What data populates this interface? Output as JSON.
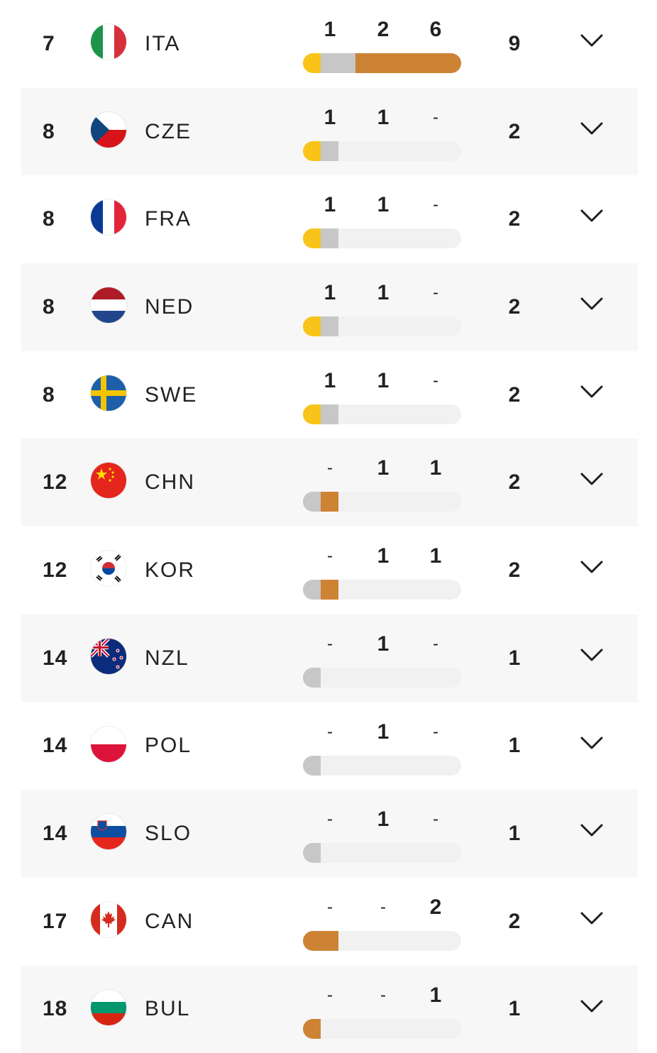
{
  "colors": {
    "gold": "#f9c41a",
    "silver": "#c7c7c7",
    "bronze": "#cd8334",
    "bar_track": "#f1f1f1",
    "row_alt": "#f7f7f7"
  },
  "medal_table": {
    "rows": [
      {
        "rank": "7",
        "code": "ITA",
        "flag_icon": "italy-flag-icon",
        "gold": "1",
        "silver": "2",
        "bronze": "6",
        "total": "9",
        "bar": {
          "gold": 1,
          "silver": 2,
          "bronze": 6
        },
        "expand_icon": "chevron-down-icon"
      },
      {
        "rank": "8",
        "code": "CZE",
        "flag_icon": "czechia-flag-icon",
        "gold": "1",
        "silver": "1",
        "bronze": "-",
        "total": "2",
        "bar": {
          "gold": 1,
          "silver": 1,
          "bronze": 0
        },
        "expand_icon": "chevron-down-icon"
      },
      {
        "rank": "8",
        "code": "FRA",
        "flag_icon": "france-flag-icon",
        "gold": "1",
        "silver": "1",
        "bronze": "-",
        "total": "2",
        "bar": {
          "gold": 1,
          "silver": 1,
          "bronze": 0
        },
        "expand_icon": "chevron-down-icon"
      },
      {
        "rank": "8",
        "code": "NED",
        "flag_icon": "netherlands-flag-icon",
        "gold": "1",
        "silver": "1",
        "bronze": "-",
        "total": "2",
        "bar": {
          "gold": 1,
          "silver": 1,
          "bronze": 0
        },
        "expand_icon": "chevron-down-icon"
      },
      {
        "rank": "8",
        "code": "SWE",
        "flag_icon": "sweden-flag-icon",
        "gold": "1",
        "silver": "1",
        "bronze": "-",
        "total": "2",
        "bar": {
          "gold": 1,
          "silver": 1,
          "bronze": 0
        },
        "expand_icon": "chevron-down-icon"
      },
      {
        "rank": "12",
        "code": "CHN",
        "flag_icon": "china-flag-icon",
        "gold": "-",
        "silver": "1",
        "bronze": "1",
        "total": "2",
        "bar": {
          "gold": 0,
          "silver": 1,
          "bronze": 1
        },
        "expand_icon": "chevron-down-icon"
      },
      {
        "rank": "12",
        "code": "KOR",
        "flag_icon": "south-korea-flag-icon",
        "gold": "-",
        "silver": "1",
        "bronze": "1",
        "total": "2",
        "bar": {
          "gold": 0,
          "silver": 1,
          "bronze": 1
        },
        "expand_icon": "chevron-down-icon"
      },
      {
        "rank": "14",
        "code": "NZL",
        "flag_icon": "new-zealand-flag-icon",
        "gold": "-",
        "silver": "1",
        "bronze": "-",
        "total": "1",
        "bar": {
          "gold": 0,
          "silver": 1,
          "bronze": 0
        },
        "expand_icon": "chevron-down-icon"
      },
      {
        "rank": "14",
        "code": "POL",
        "flag_icon": "poland-flag-icon",
        "gold": "-",
        "silver": "1",
        "bronze": "-",
        "total": "1",
        "bar": {
          "gold": 0,
          "silver": 1,
          "bronze": 0
        },
        "expand_icon": "chevron-down-icon"
      },
      {
        "rank": "14",
        "code": "SLO",
        "flag_icon": "slovenia-flag-icon",
        "gold": "-",
        "silver": "1",
        "bronze": "-",
        "total": "1",
        "bar": {
          "gold": 0,
          "silver": 1,
          "bronze": 0
        },
        "expand_icon": "chevron-down-icon"
      },
      {
        "rank": "17",
        "code": "CAN",
        "flag_icon": "canada-flag-icon",
        "gold": "-",
        "silver": "-",
        "bronze": "2",
        "total": "2",
        "bar": {
          "gold": 0,
          "silver": 0,
          "bronze": 2
        },
        "expand_icon": "chevron-down-icon"
      },
      {
        "rank": "18",
        "code": "BUL",
        "flag_icon": "bulgaria-flag-icon",
        "gold": "-",
        "silver": "-",
        "bronze": "1",
        "total": "1",
        "bar": {
          "gold": 0,
          "silver": 0,
          "bronze": 1
        },
        "expand_icon": "chevron-down-icon"
      }
    ]
  }
}
